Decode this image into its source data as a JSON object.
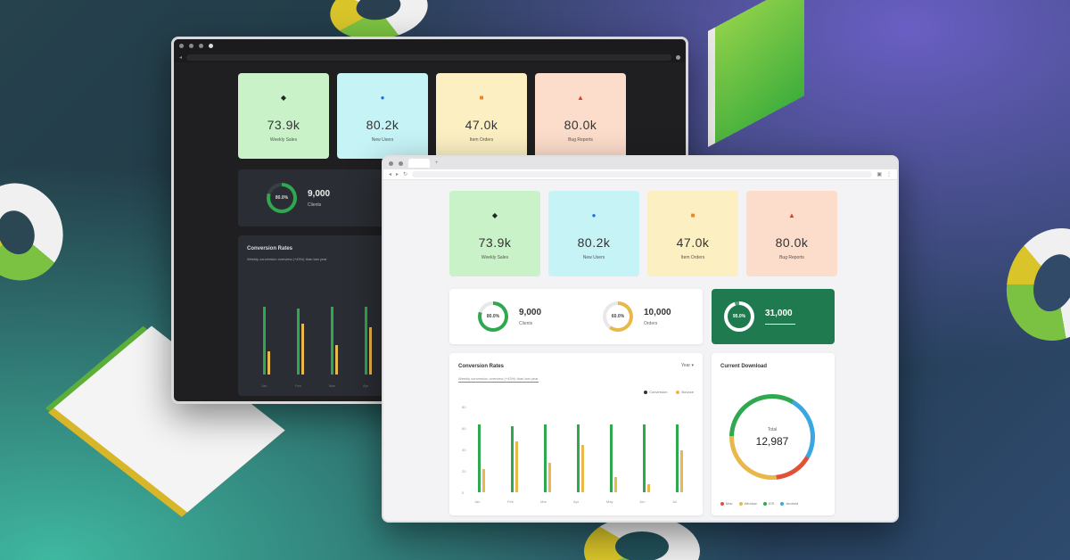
{
  "background_colors": {
    "accent_purple": "#6a5fc4",
    "accent_teal": "#3fb8a0",
    "base": "#1f3646"
  },
  "stats": [
    {
      "value": "73.9k",
      "label": "Weekly Sales",
      "icon": "leaf-icon",
      "bg": "#c9f2c9",
      "icon_color": "#1d2b1d"
    },
    {
      "value": "80.2k",
      "label": "New Users",
      "icon": "user-icon",
      "bg": "#c6f3f6",
      "icon_color": "#1e6fe0"
    },
    {
      "value": "47.0k",
      "label": "Item Orders",
      "icon": "box-icon",
      "bg": "#fcefc2",
      "icon_color": "#e8862a"
    },
    {
      "value": "80.0k",
      "label": "Bug Reports",
      "icon": "bug-icon",
      "bg": "#fcdcca",
      "icon_color": "#d9412e"
    }
  ],
  "ring_stats": [
    {
      "value": "9,000",
      "label": "Clients",
      "percent_label": "80.0%",
      "progress": 0.8,
      "color": "#2fa84f"
    },
    {
      "value": "10,000",
      "label": "Orders",
      "percent_label": "60.0%",
      "progress": 0.6,
      "color": "#e8b84a"
    },
    {
      "value": "31,000",
      "label": "",
      "percent_label": "95.0%",
      "progress": 0.95,
      "color": "#ffffff"
    }
  ],
  "dark_ring_stat": {
    "value": "9,000",
    "label": "Clients",
    "percent_label": "80.0%"
  },
  "sales_chart": {
    "title": "Conversion Rates",
    "subtitle": "Weekly conversion overview (+43%) than last year",
    "dropdown": "Year",
    "legend": [
      "Conversion",
      "Bounce"
    ]
  },
  "donut": {
    "title": "Current Download",
    "center_label": "Total",
    "center_value": "12,987",
    "legend": [
      "Mac",
      "Window",
      "iOS",
      "Android"
    ],
    "colors": [
      "#e2503a",
      "#e8b84a",
      "#2fa84f",
      "#39a8e0"
    ]
  },
  "chart_data": {
    "type": "bar",
    "categories": [
      "Jan",
      "Feb",
      "Mar",
      "Apr",
      "May",
      "Jun",
      "Jul"
    ],
    "series": [
      {
        "name": "Conversion",
        "values": [
          80,
          78,
          80,
          80,
          80,
          80,
          80
        ]
      },
      {
        "name": "Bounce",
        "values": [
          27,
          60,
          35,
          56,
          18,
          10,
          50
        ]
      }
    ],
    "ylim": [
      0,
      100
    ],
    "yticks": [
      "80",
      "60",
      "40",
      "20",
      "0"
    ]
  }
}
